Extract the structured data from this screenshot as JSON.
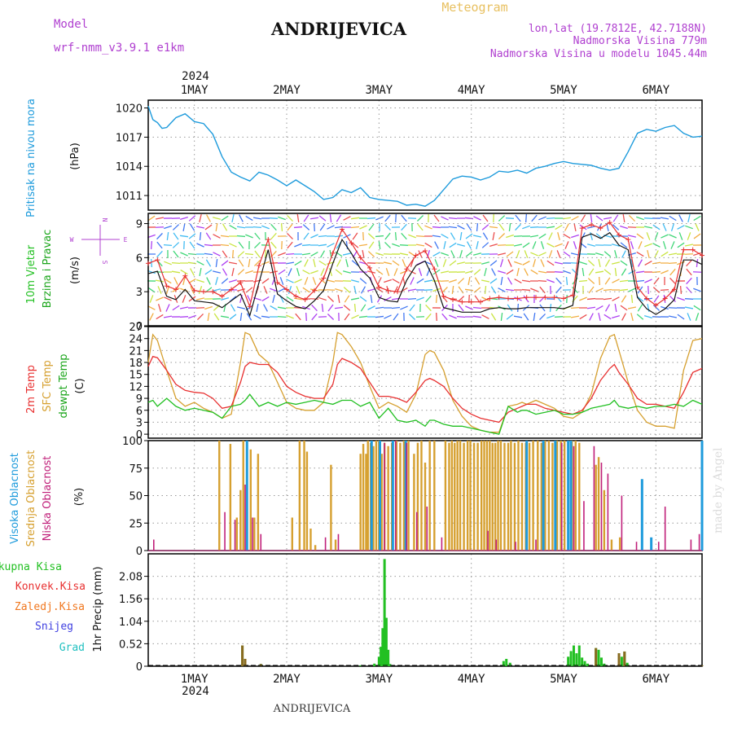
{
  "header": {
    "model_label": "Model",
    "model_name": "wrf-nmm_v3.9.1 e1km",
    "title": "ANDRIJEVICA",
    "meteogram": "Meteogram",
    "coords": "lon,lat (19.7812E, 42.7188N)",
    "elevation": "Nadmorska Visina 779m",
    "model_elevation": "Nadmorska Visina u modelu 1045.44m",
    "footer_title": "ANDRIJEVICA",
    "watermark": "made by Angel"
  },
  "colors": {
    "pressure": "#1e9bdc",
    "wind_label": "#22c022",
    "wind_label2": "#1aa51a",
    "temp2m": "#e83030",
    "sfc": "#d6a030",
    "dewpt": "#22c022",
    "high_cloud": "#1e9bdc",
    "mid_cloud": "#d6a030",
    "low_cloud": "#c0207a",
    "rain_total": "#22c022",
    "rain_conv": "#e83030",
    "freezing": "#f07820",
    "snow": "#4040e0",
    "hail": "#20c0c0",
    "purple": "#b040d0"
  },
  "chart_data": [
    {
      "type": "line",
      "name": "pressure",
      "ylabel_main": "Pritisak na nivou mora",
      "ylabel_unit": "(hPa)",
      "yticks": [
        1011,
        1014,
        1017,
        1020
      ],
      "ylim": [
        1009.5,
        1020.8
      ],
      "x_day_range": [
        0.5,
        6.5
      ],
      "x": [
        0.5,
        0.55,
        0.6,
        0.65,
        0.7,
        0.75,
        0.8,
        0.9,
        1.0,
        1.1,
        1.2,
        1.3,
        1.4,
        1.5,
        1.6,
        1.7,
        1.8,
        1.9,
        2.0,
        2.1,
        2.2,
        2.3,
        2.4,
        2.5,
        2.6,
        2.7,
        2.8,
        2.9,
        3.0,
        3.1,
        3.2,
        3.3,
        3.4,
        3.5,
        3.6,
        3.7,
        3.8,
        3.9,
        4.0,
        4.1,
        4.2,
        4.3,
        4.4,
        4.5,
        4.6,
        4.7,
        4.8,
        4.9,
        5.0,
        5.1,
        5.2,
        5.3,
        5.4,
        5.5,
        5.6,
        5.7,
        5.8,
        5.9,
        6.0,
        6.1,
        6.2,
        6.3,
        6.4,
        6.5
      ],
      "values": [
        1020.2,
        1018.8,
        1018.5,
        1017.9,
        1018.0,
        1018.5,
        1019.0,
        1019.4,
        1018.6,
        1018.4,
        1017.3,
        1015.0,
        1013.4,
        1012.9,
        1012.5,
        1013.4,
        1013.1,
        1012.6,
        1012.0,
        1012.6,
        1012.0,
        1011.4,
        1010.6,
        1010.8,
        1011.6,
        1011.3,
        1011.8,
        1010.8,
        1010.6,
        1010.5,
        1010.4,
        1010.0,
        1010.1,
        1009.9,
        1010.5,
        1011.6,
        1012.7,
        1013.0,
        1012.9,
        1012.6,
        1012.9,
        1013.5,
        1013.4,
        1013.6,
        1013.3,
        1013.8,
        1014.0,
        1014.3,
        1014.5,
        1014.3,
        1014.2,
        1014.1,
        1013.8,
        1013.6,
        1013.8,
        1015.5,
        1017.4,
        1017.8,
        1017.6,
        1018.0,
        1018.2,
        1017.4,
        1017.0,
        1017.1
      ]
    },
    {
      "type": "line",
      "name": "wind",
      "ylabel_main": "10m Vjetar",
      "ylabel_main2": "Brzina i Pravac",
      "ylabel_unit": "(m/s)",
      "compass_n": "N",
      "compass_s": "S",
      "compass_w": "W",
      "compass_e": "E",
      "yticks": [
        0,
        3,
        6,
        9
      ],
      "ylim": [
        0,
        9.9
      ],
      "x": [
        0.5,
        0.6,
        0.7,
        0.8,
        0.9,
        1.0,
        1.1,
        1.2,
        1.3,
        1.4,
        1.5,
        1.6,
        1.7,
        1.8,
        1.9,
        2.0,
        2.1,
        2.2,
        2.3,
        2.4,
        2.5,
        2.6,
        2.7,
        2.8,
        2.9,
        3.0,
        3.1,
        3.2,
        3.3,
        3.4,
        3.5,
        3.6,
        3.7,
        3.8,
        3.9,
        4.0,
        4.1,
        4.2,
        4.3,
        4.4,
        4.5,
        4.6,
        4.7,
        4.8,
        4.9,
        5.0,
        5.1,
        5.2,
        5.3,
        5.4,
        5.5,
        5.6,
        5.7,
        5.8,
        5.9,
        6.0,
        6.1,
        6.2,
        6.3,
        6.4,
        6.5
      ],
      "speed": [
        4.6,
        4.8,
        2.6,
        2.3,
        3.2,
        2.2,
        2.1,
        2.0,
        1.6,
        2.2,
        2.8,
        0.9,
        3.8,
        6.7,
        2.8,
        2.2,
        1.7,
        1.5,
        2.2,
        3.1,
        5.5,
        7.6,
        6.4,
        5.0,
        4.2,
        2.5,
        2.2,
        2.1,
        4.0,
        5.3,
        5.7,
        4.0,
        1.6,
        1.4,
        1.2,
        1.2,
        1.2,
        1.5,
        1.6,
        1.5,
        1.5,
        1.6,
        1.6,
        1.6,
        1.6,
        1.5,
        1.8,
        7.8,
        8.1,
        7.7,
        8.2,
        7.1,
        6.7,
        2.5,
        1.5,
        1.0,
        1.5,
        2.3,
        5.8,
        5.8,
        5.4
      ],
      "gust": [
        5.5,
        5.8,
        3.5,
        3.2,
        4.4,
        3.1,
        3.0,
        3.0,
        2.6,
        3.2,
        3.8,
        1.7,
        5.3,
        7.6,
        3.8,
        3.2,
        2.6,
        2.3,
        3.1,
        4.2,
        6.4,
        8.5,
        7.3,
        6.0,
        5.1,
        3.4,
        3.1,
        3.0,
        5.0,
        6.2,
        6.6,
        5.0,
        2.6,
        2.3,
        2.1,
        2.1,
        2.1,
        2.4,
        2.5,
        2.4,
        2.4,
        2.5,
        2.5,
        2.5,
        2.5,
        2.4,
        2.7,
        8.6,
        8.9,
        8.6,
        9.1,
        8.0,
        7.6,
        3.4,
        2.4,
        1.8,
        2.4,
        3.2,
        6.7,
        6.7,
        6.2
      ]
    },
    {
      "type": "line",
      "name": "temperature",
      "ylabel_main": "2m Temp",
      "ylabel_main2": "SFC Temp",
      "ylabel_main3": "dewpt Temp",
      "ylabel_unit": "(C)",
      "yticks": [
        0,
        3,
        6,
        9,
        12,
        15,
        18,
        21,
        24,
        27
      ],
      "ylim": [
        -1,
        27
      ],
      "x": [
        0.5,
        0.55,
        0.6,
        0.7,
        0.8,
        0.9,
        1.0,
        1.1,
        1.2,
        1.3,
        1.4,
        1.5,
        1.55,
        1.6,
        1.7,
        1.8,
        1.9,
        2.0,
        2.1,
        2.2,
        2.3,
        2.4,
        2.5,
        2.55,
        2.6,
        2.7,
        2.8,
        2.9,
        3.0,
        3.1,
        3.2,
        3.3,
        3.4,
        3.5,
        3.55,
        3.6,
        3.7,
        3.8,
        3.9,
        4.0,
        4.1,
        4.2,
        4.3,
        4.4,
        4.5,
        4.55,
        4.6,
        4.7,
        4.8,
        4.9,
        5.0,
        5.1,
        5.2,
        5.3,
        5.4,
        5.5,
        5.55,
        5.6,
        5.7,
        5.8,
        5.9,
        6.0,
        6.1,
        6.2,
        6.3,
        6.4,
        6.5
      ],
      "t2m": [
        17.0,
        19.5,
        19.2,
        16.0,
        12.5,
        11.0,
        10.5,
        10.3,
        9.0,
        6.5,
        7.0,
        13.0,
        17.0,
        18.0,
        17.5,
        17.5,
        15.5,
        12.0,
        10.5,
        9.5,
        9.0,
        9.0,
        12.5,
        17.5,
        19.0,
        18.0,
        16.5,
        13.0,
        9.5,
        9.5,
        9.0,
        8.0,
        10.5,
        13.5,
        14.0,
        13.5,
        12.0,
        9.0,
        6.5,
        5.0,
        4.0,
        3.5,
        3.0,
        5.5,
        6.5,
        7.0,
        7.5,
        7.5,
        6.5,
        6.0,
        5.5,
        5.0,
        6.0,
        9.0,
        13.5,
        16.5,
        17.5,
        15.5,
        12.5,
        9.0,
        7.5,
        7.5,
        7.0,
        6.5,
        10.5,
        15.5,
        16.5
      ],
      "sfc": [
        18.0,
        25.0,
        23.5,
        16.0,
        9.0,
        7.0,
        8.0,
        6.5,
        5.5,
        4.0,
        5.0,
        18.0,
        25.5,
        25.0,
        20.0,
        18.0,
        13.0,
        8.0,
        6.5,
        6.0,
        6.0,
        8.0,
        18.0,
        25.5,
        25.0,
        22.0,
        18.0,
        12.0,
        6.5,
        8.0,
        7.0,
        5.5,
        10.0,
        20.0,
        21.0,
        20.5,
        16.0,
        8.5,
        4.5,
        2.0,
        1.0,
        0.5,
        0.5,
        7.0,
        7.5,
        8.0,
        7.5,
        8.5,
        7.5,
        6.5,
        4.5,
        4.0,
        5.5,
        10.0,
        19.0,
        24.5,
        25.0,
        21.0,
        13.0,
        6.0,
        3.0,
        2.0,
        2.0,
        1.5,
        16.0,
        23.5,
        24.0
      ],
      "dewpt": [
        8.0,
        8.5,
        7.0,
        9.0,
        7.0,
        6.0,
        6.5,
        6.0,
        5.5,
        4.0,
        7.0,
        7.5,
        8.5,
        10.0,
        7.0,
        8.0,
        7.0,
        8.0,
        7.5,
        8.0,
        8.5,
        8.0,
        7.5,
        8.0,
        8.5,
        8.5,
        7.0,
        8.0,
        4.0,
        6.5,
        3.5,
        3.0,
        3.5,
        2.0,
        3.5,
        3.5,
        2.5,
        2.0,
        2.0,
        1.5,
        1.0,
        0.5,
        0.0,
        7.0,
        5.5,
        6.0,
        6.0,
        5.0,
        5.5,
        6.0,
        5.0,
        5.0,
        5.5,
        6.5,
        7.0,
        7.5,
        8.5,
        7.0,
        6.5,
        7.0,
        6.5,
        7.0,
        7.0,
        7.5,
        7.0,
        8.5,
        7.5
      ]
    },
    {
      "type": "bar",
      "name": "cloud",
      "ylabel_main": "Visoka Oblacnost",
      "ylabel_main2": "Srednja Oblacnost",
      "ylabel_main3": "Niska Oblacnost",
      "ylabel_unit": "(%)",
      "yticks": [
        0,
        25,
        50,
        75,
        100
      ],
      "ylim": [
        0,
        100
      ],
      "mid_x": [
        1.27,
        1.39,
        1.46,
        1.5,
        1.53,
        1.57,
        1.61,
        1.65,
        1.69,
        2.06,
        2.14,
        2.19,
        2.22,
        2.26,
        2.31,
        2.48,
        2.53,
        2.8,
        2.83,
        2.86,
        2.88,
        2.91,
        2.94,
        2.97,
        3.0,
        3.03,
        3.06,
        3.1,
        3.14,
        3.19,
        3.23,
        3.27,
        3.32,
        3.38,
        3.42,
        3.46,
        3.5,
        3.55,
        3.6,
        3.72,
        3.76,
        3.79,
        3.82,
        3.85,
        3.88,
        3.92,
        3.96,
        3.99,
        4.03,
        4.07,
        4.11,
        4.14,
        4.17,
        4.2,
        4.23,
        4.26,
        4.29,
        4.32,
        4.36,
        4.4,
        4.43,
        4.47,
        4.51,
        4.55,
        4.59,
        4.63,
        4.67,
        4.72,
        4.76,
        4.8,
        4.84,
        4.88,
        4.93,
        4.97,
        5.01,
        5.05,
        5.09,
        5.13,
        5.17,
        5.35,
        5.38,
        5.44,
        5.52,
        5.61
      ],
      "mid_val": [
        100,
        97,
        30,
        55,
        100,
        97,
        92,
        30,
        88,
        30,
        100,
        100,
        90,
        20,
        5,
        78,
        10,
        88,
        97,
        88,
        100,
        98,
        95,
        100,
        100,
        88,
        98,
        95,
        98,
        100,
        98,
        100,
        100,
        88,
        98,
        100,
        80,
        100,
        100,
        100,
        98,
        100,
        98,
        100,
        100,
        98,
        100,
        100,
        98,
        98,
        100,
        100,
        100,
        100,
        98,
        98,
        100,
        100,
        98,
        98,
        100,
        98,
        100,
        98,
        98,
        98,
        100,
        100,
        98,
        100,
        100,
        98,
        100,
        100,
        100,
        98,
        100,
        100,
        98,
        78,
        85,
        55,
        10,
        12
      ],
      "high_x": [
        1.57,
        2.92,
        3.01,
        3.15,
        3.29,
        4.6,
        4.78,
        4.91,
        5.05,
        5.08,
        5.85,
        5.95,
        6.5
      ],
      "high_val": [
        100,
        100,
        100,
        100,
        100,
        100,
        100,
        100,
        100,
        100,
        65,
        12,
        100
      ],
      "low_x": [
        0.56,
        1.33,
        1.44,
        1.55,
        1.63,
        1.72,
        2.42,
        2.56,
        3.06,
        3.18,
        3.3,
        3.41,
        3.52,
        3.68,
        4.18,
        4.27,
        4.48,
        4.7,
        4.98,
        5.11,
        5.22,
        5.33,
        5.41,
        5.48,
        5.63,
        5.79,
        6.03,
        6.1,
        6.38,
        6.47
      ],
      "low_val": [
        10,
        35,
        28,
        60,
        30,
        15,
        12,
        15,
        98,
        100,
        98,
        35,
        40,
        12,
        18,
        10,
        8,
        10,
        98,
        95,
        45,
        95,
        80,
        70,
        50,
        8,
        8,
        40,
        10,
        15
      ]
    },
    {
      "type": "bar",
      "name": "precip",
      "ylabel_main": "1hr Precip (mm)",
      "legend_total": "Ukupna Kisa",
      "legend_conv": "Konvek.Kisa",
      "legend_freezing": "Zaledj.Kisa",
      "legend_snow": "Snijeg",
      "legend_hail": "Grad",
      "yticks": [
        0,
        0.52,
        1.04,
        1.56,
        2.08
      ],
      "ylim": [
        0,
        2.6
      ],
      "x": [
        1.52,
        1.55,
        1.72,
        2.8,
        2.95,
        3.0,
        3.02,
        3.04,
        3.06,
        3.08,
        3.1,
        3.12,
        4.35,
        4.38,
        4.42,
        5.05,
        5.08,
        5.11,
        5.14,
        5.17,
        5.2,
        5.23,
        5.26,
        5.35,
        5.38,
        5.41,
        5.44,
        5.6,
        5.63,
        5.66,
        5.69,
        6.5
      ],
      "total": [
        0.48,
        0.17,
        0.05,
        0.02,
        0.06,
        0.22,
        0.45,
        0.88,
        2.48,
        1.12,
        0.38,
        0.05,
        0.12,
        0.17,
        0.08,
        0.22,
        0.35,
        0.48,
        0.3,
        0.48,
        0.2,
        0.12,
        0.06,
        0.42,
        0.38,
        0.2,
        0.06,
        0.3,
        0.22,
        0.34,
        0.08,
        0.02
      ],
      "conv": [
        0.48,
        0.17,
        0.05,
        0.0,
        0.0,
        0.0,
        0.0,
        0.0,
        0.0,
        0.0,
        0.0,
        0.0,
        0.0,
        0.0,
        0.0,
        0.0,
        0.0,
        0.0,
        0.0,
        0.0,
        0.0,
        0.0,
        0.0,
        0.42,
        0.0,
        0.0,
        0.0,
        0.3,
        0.0,
        0.34,
        0.0,
        0.02
      ]
    }
  ],
  "x_axis": {
    "year": "2024",
    "days": [
      {
        "pos": 1,
        "label": "1MAY"
      },
      {
        "pos": 2,
        "label": "2MAY"
      },
      {
        "pos": 3,
        "label": "3MAY"
      },
      {
        "pos": 4,
        "label": "4MAY"
      },
      {
        "pos": 5,
        "label": "5MAY"
      },
      {
        "pos": 6,
        "label": "6MAY"
      }
    ]
  }
}
